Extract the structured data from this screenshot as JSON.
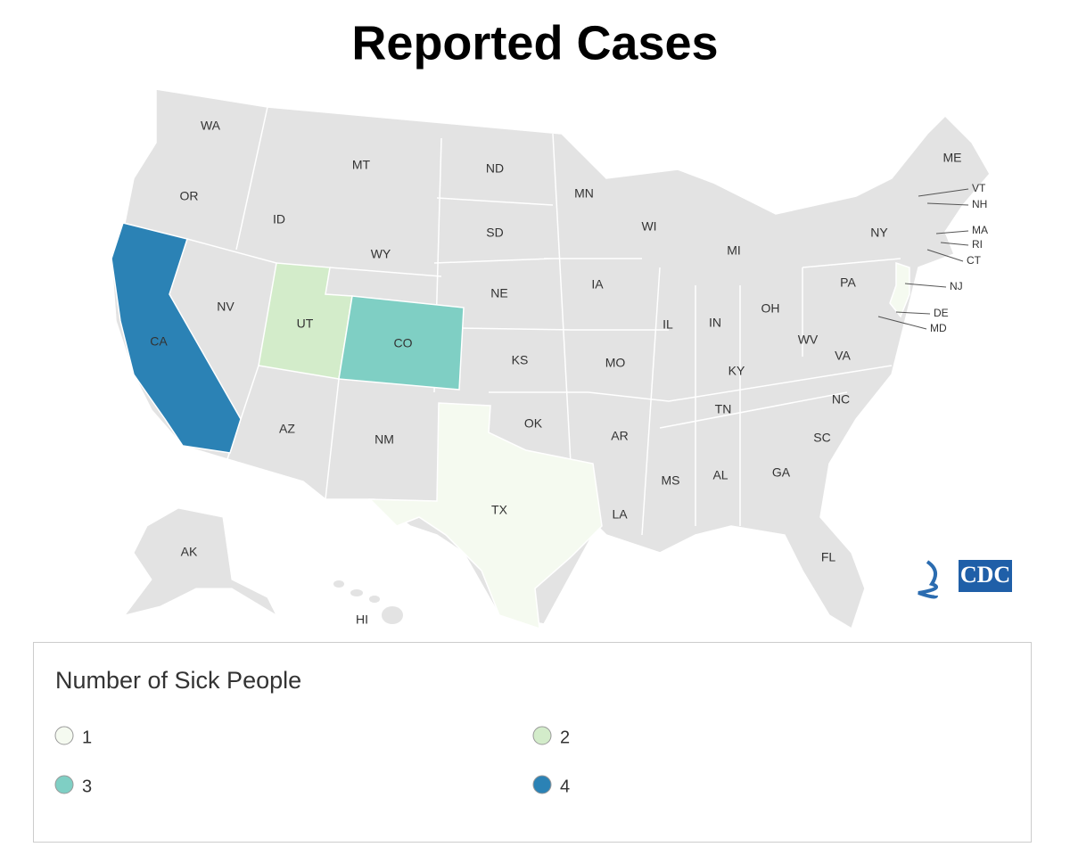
{
  "title": "Reported Cases",
  "states": [
    {
      "label": "WA"
    },
    {
      "label": "OR"
    },
    {
      "label": "CA",
      "cases": 4
    },
    {
      "label": "NV"
    },
    {
      "label": "ID"
    },
    {
      "label": "MT"
    },
    {
      "label": "WY"
    },
    {
      "label": "UT",
      "cases": 2
    },
    {
      "label": "CO",
      "cases": 3
    },
    {
      "label": "AZ"
    },
    {
      "label": "NM"
    },
    {
      "label": "ND"
    },
    {
      "label": "SD"
    },
    {
      "label": "NE"
    },
    {
      "label": "KS"
    },
    {
      "label": "OK"
    },
    {
      "label": "TX",
      "cases": 1
    },
    {
      "label": "MN"
    },
    {
      "label": "IA"
    },
    {
      "label": "MO"
    },
    {
      "label": "AR"
    },
    {
      "label": "LA"
    },
    {
      "label": "WI"
    },
    {
      "label": "IL"
    },
    {
      "label": "MI"
    },
    {
      "label": "IN"
    },
    {
      "label": "OH"
    },
    {
      "label": "KY"
    },
    {
      "label": "TN"
    },
    {
      "label": "MS"
    },
    {
      "label": "AL"
    },
    {
      "label": "GA"
    },
    {
      "label": "FL"
    },
    {
      "label": "SC"
    },
    {
      "label": "NC"
    },
    {
      "label": "VA"
    },
    {
      "label": "WV"
    },
    {
      "label": "PA"
    },
    {
      "label": "NY"
    },
    {
      "label": "ME"
    },
    {
      "label": "VT"
    },
    {
      "label": "NH"
    },
    {
      "label": "MA"
    },
    {
      "label": "RI"
    },
    {
      "label": "CT"
    },
    {
      "label": "NJ",
      "cases": 1
    },
    {
      "label": "DE"
    },
    {
      "label": "MD"
    },
    {
      "label": "AK"
    },
    {
      "label": "HI"
    }
  ],
  "legend": {
    "title": "Number of Sick People",
    "bins": [
      1,
      2,
      3,
      4
    ],
    "colors": [
      "#f5faf0",
      "#d3ecca",
      "#7fcfc4",
      "#2b82b5"
    ]
  },
  "base_color": "#e3e3e3",
  "logo": "CDC"
}
